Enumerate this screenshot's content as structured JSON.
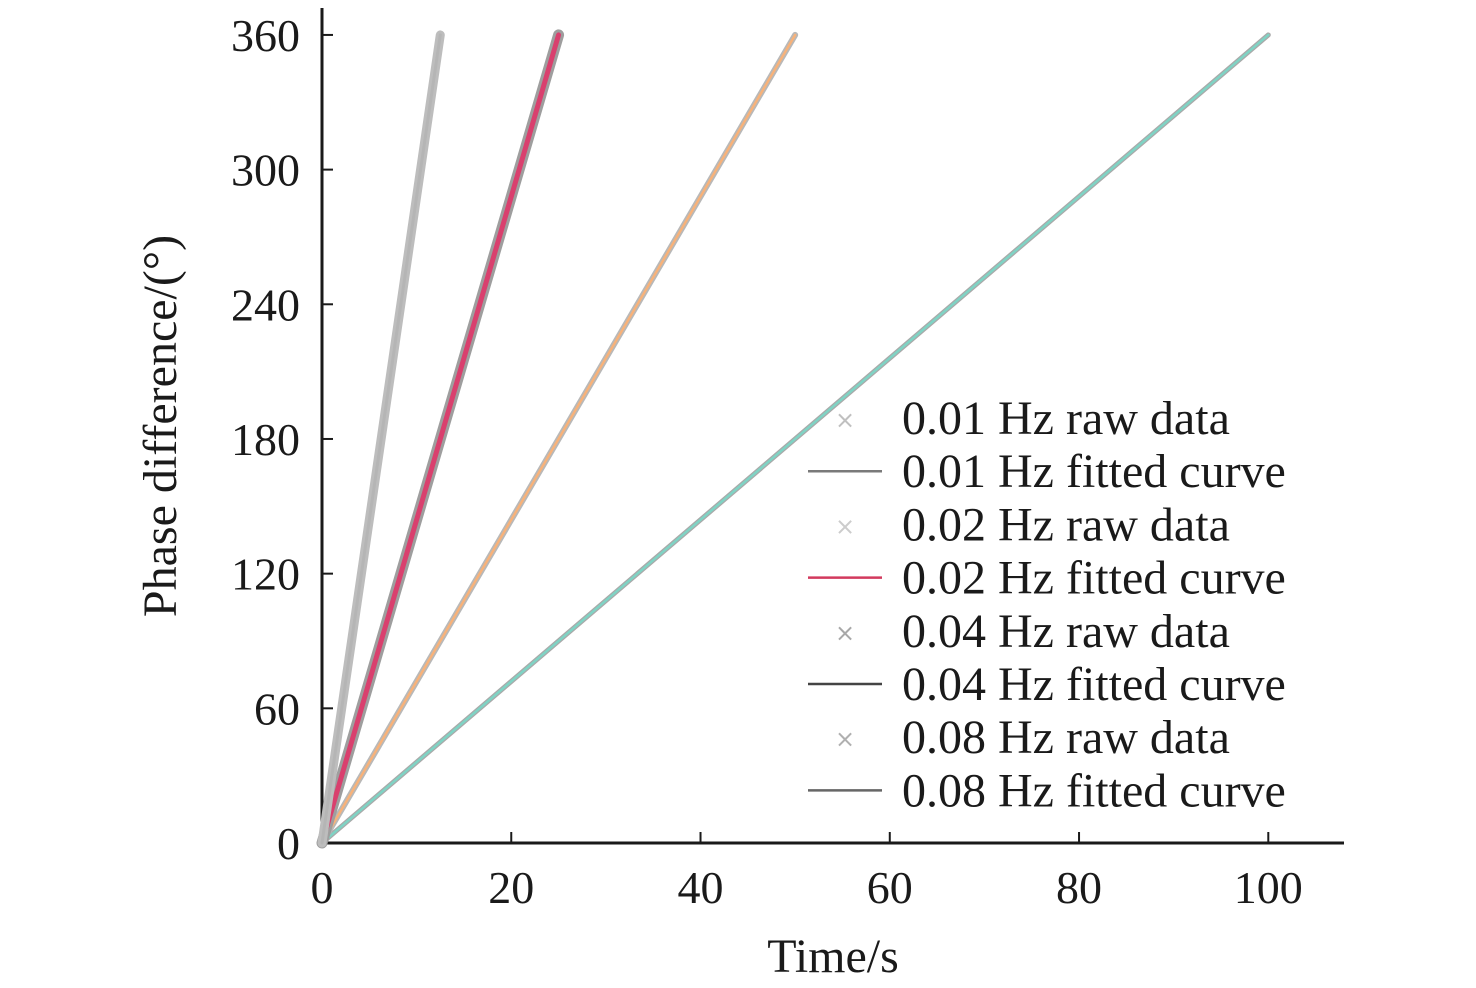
{
  "chart_data": {
    "type": "line",
    "title": "",
    "xlabel": "Time/s",
    "ylabel": "Phase difference/(°)",
    "xlim": [
      0,
      108
    ],
    "ylim": [
      0,
      372
    ],
    "xticks": [
      0,
      20,
      40,
      60,
      80,
      100
    ],
    "yticks": [
      0,
      60,
      120,
      180,
      240,
      300,
      360
    ],
    "grid": false,
    "legend_position": "lower-right",
    "series": [
      {
        "name": "0.01 Hz raw data",
        "kind": "markers",
        "x": [
          0,
          100
        ],
        "y": [
          0,
          360
        ],
        "color": "#a9a9a9"
      },
      {
        "name": "0.01 Hz fitted curve",
        "kind": "line",
        "x": [
          0,
          100
        ],
        "y": [
          0,
          360
        ],
        "color": "#7fd3c4"
      },
      {
        "name": "0.02 Hz raw data",
        "kind": "markers",
        "x": [
          0,
          50
        ],
        "y": [
          0,
          360
        ],
        "color": "#b8b8b8"
      },
      {
        "name": "0.02 Hz fitted curve",
        "kind": "line",
        "x": [
          0,
          50
        ],
        "y": [
          0,
          360
        ],
        "color": "#f7b27a"
      },
      {
        "name": "0.04 Hz raw data",
        "kind": "markers",
        "x": [
          0,
          25
        ],
        "y": [
          0,
          360
        ],
        "color": "#9e9e9e"
      },
      {
        "name": "0.04 Hz fitted curve",
        "kind": "line",
        "x": [
          0,
          25
        ],
        "y": [
          0,
          360
        ],
        "color": "#d9406e"
      },
      {
        "name": "0.08 Hz raw data",
        "kind": "markers",
        "x": [
          0,
          12.5
        ],
        "y": [
          0,
          360
        ],
        "color": "#bdbdbd"
      },
      {
        "name": "0.08 Hz fitted curve",
        "kind": "line",
        "x": [
          0,
          12.5
        ],
        "y": [
          0,
          360
        ],
        "color": "#b5b5b5"
      }
    ],
    "legend_swatches": [
      {
        "label_index": 0,
        "symbol": "×",
        "color": "#c0c0c0"
      },
      {
        "label_index": 1,
        "symbol": "line",
        "color": "#7a7a7a"
      },
      {
        "label_index": 2,
        "symbol": "×",
        "color": "#cccccc"
      },
      {
        "label_index": 3,
        "symbol": "line",
        "color": "#d23a5e"
      },
      {
        "label_index": 4,
        "symbol": "×",
        "color": "#a8a8a8"
      },
      {
        "label_index": 5,
        "symbol": "line",
        "color": "#444444"
      },
      {
        "label_index": 6,
        "symbol": "×",
        "color": "#b0b0b0"
      },
      {
        "label_index": 7,
        "symbol": "line",
        "color": "#666666"
      }
    ]
  }
}
